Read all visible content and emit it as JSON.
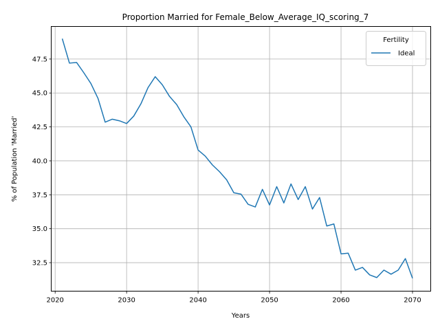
{
  "chart_data": {
    "type": "line",
    "title": "Proportion Married for Female_Below_Average_IQ_scoring_7",
    "xlabel": "Years",
    "ylabel": "% of Population 'Married'",
    "xlim": [
      2019.5,
      2072.5
    ],
    "ylim": [
      30.4,
      49.9
    ],
    "xticks": [
      2020,
      2030,
      2040,
      2050,
      2060,
      2070
    ],
    "yticks": [
      32.5,
      35.0,
      37.5,
      40.0,
      42.5,
      45.0,
      47.5
    ],
    "grid": true,
    "legend": {
      "title": "Fertility",
      "placement": "top-right"
    },
    "series": [
      {
        "name": "Ideal",
        "color": "#1f77b4",
        "x": [
          2021,
          2022,
          2023,
          2024,
          2025,
          2026,
          2027,
          2028,
          2029,
          2030,
          2031,
          2032,
          2033,
          2034,
          2035,
          2036,
          2037,
          2038,
          2039,
          2040,
          2041,
          2042,
          2043,
          2044,
          2045,
          2046,
          2047,
          2048,
          2049,
          2050,
          2051,
          2052,
          2053,
          2054,
          2055,
          2056,
          2057,
          2058,
          2059,
          2060,
          2061,
          2062,
          2063,
          2064,
          2065,
          2066,
          2067,
          2068,
          2069,
          2070
        ],
        "values": [
          49.0,
          47.2,
          47.25,
          46.5,
          45.7,
          44.6,
          42.85,
          43.07,
          42.95,
          42.75,
          43.3,
          44.2,
          45.4,
          46.2,
          45.6,
          44.75,
          44.15,
          43.25,
          42.5,
          40.8,
          40.35,
          39.7,
          39.2,
          38.6,
          37.65,
          37.55,
          36.8,
          36.6,
          37.9,
          36.75,
          38.1,
          36.9,
          38.3,
          37.15,
          38.1,
          36.45,
          37.3,
          35.2,
          35.35,
          33.15,
          33.2,
          31.95,
          32.15,
          31.6,
          31.4,
          31.95,
          31.65,
          31.95,
          32.8,
          31.35
        ]
      }
    ]
  }
}
